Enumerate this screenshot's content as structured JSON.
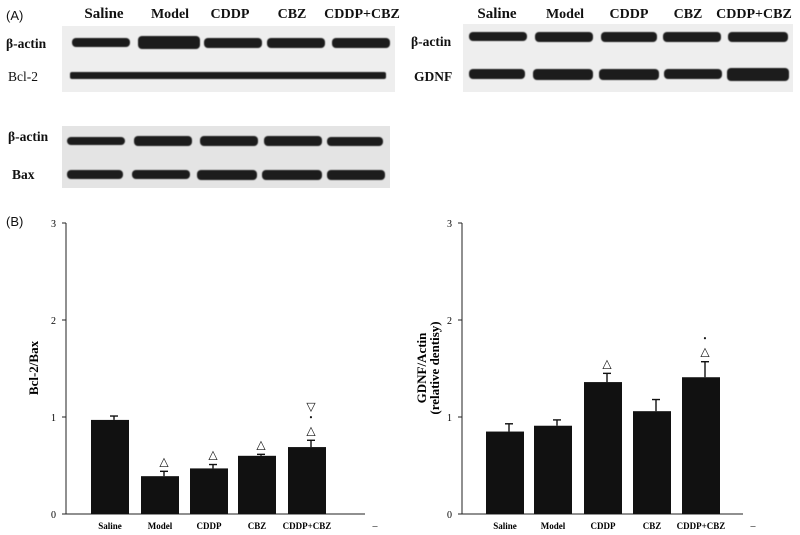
{
  "panel_a": "(A)",
  "panel_b": "(B)",
  "blot_left": {
    "headers": [
      "Saline",
      "Model",
      "CDDP",
      "CBZ",
      "CDDP+CBZ"
    ],
    "row1": "β-actin",
    "row2": "Bcl-2",
    "row3": "β-actin",
    "row4": "Bax"
  },
  "blot_right": {
    "headers": [
      "Saline",
      "Model",
      "CDDP",
      "CBZ",
      "CDDP+CBZ"
    ],
    "row1": "β-actin",
    "row2": "GDNF"
  },
  "chart_data": [
    {
      "type": "bar",
      "categories": [
        "Saline",
        "Model",
        "CDDP",
        "CBZ",
        "CDDP+CBZ"
      ],
      "values": [
        0.97,
        0.39,
        0.47,
        0.6,
        0.69
      ],
      "errors": [
        0.04,
        0.05,
        0.04,
        0.015,
        0.07
      ],
      "markers": [
        "",
        "△",
        "△",
        "△",
        "▽\n•\n△"
      ],
      "ylabel_lines": [
        "Bcl-2/Bax"
      ],
      "yticks": [
        "0",
        "1",
        "2",
        "3"
      ],
      "ylim": [
        0,
        3
      ]
    },
    {
      "type": "bar",
      "categories": [
        "Saline",
        "Model",
        "CDDP",
        "CBZ",
        "CDDP+CBZ"
      ],
      "values": [
        0.85,
        0.91,
        1.36,
        1.06,
        1.41
      ],
      "errors": [
        0.08,
        0.06,
        0.09,
        0.12,
        0.16
      ],
      "markers": [
        "",
        "",
        "△",
        "",
        "•\n△"
      ],
      "ylabel_lines": [
        "GDNF/Actin",
        "(relative dentisy)"
      ],
      "yticks": [
        "0",
        "1",
        "2",
        "3"
      ],
      "ylim": [
        0,
        3
      ]
    }
  ]
}
